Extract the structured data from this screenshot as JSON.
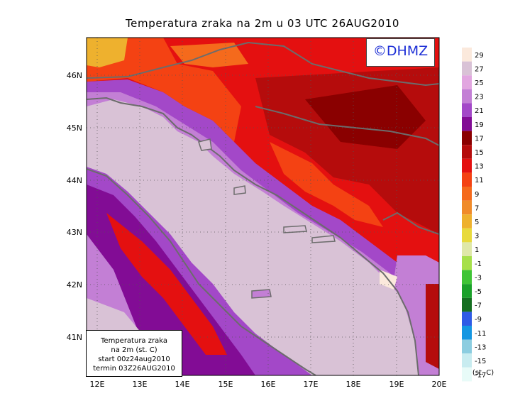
{
  "title": "Temperatura zraka na 2m u 03 UTC 26AUG2010",
  "logo": "©DHMZ",
  "info_box": {
    "line1": "Temperatura zraka",
    "line2": "na 2m (st. C)",
    "line3": "start 00z24aug2010",
    "line4": "termin 03Z26AUG2010"
  },
  "axes": {
    "lat_labels": [
      "46N",
      "45N",
      "44N",
      "43N",
      "42N",
      "41N"
    ],
    "lon_labels": [
      "12E",
      "13E",
      "14E",
      "15E",
      "16E",
      "17E",
      "18E",
      "19E",
      "20E"
    ]
  },
  "colorbar": {
    "unit": "(st. C)",
    "labels": [
      "29",
      "27",
      "25",
      "23",
      "21",
      "19",
      "17",
      "15",
      "13",
      "11",
      "9",
      "7",
      "5",
      "3",
      "1",
      "-1",
      "-3",
      "-5",
      "-7",
      "-9",
      "-11",
      "-13",
      "-15",
      "-17"
    ],
    "colors": [
      "#fbe9dc",
      "#d9c2d6",
      "#e2a6e0",
      "#c37fd5",
      "#a348c8",
      "#820c95",
      "#8a0000",
      "#b50c0c",
      "#e41010",
      "#f44213",
      "#f56a1c",
      "#f08b2a",
      "#eeb12e",
      "#e8da3c",
      "#dfe8a8",
      "#a6e04a",
      "#3fc436",
      "#1aa12a",
      "#156f21",
      "#2f5be6",
      "#1597e2",
      "#8ccde0",
      "#c8ecf0",
      "#e8fbf8"
    ]
  },
  "colors": {
    "sea": "#d9c2d6",
    "coast": "#6c6c6c",
    "grid": "#555555"
  }
}
